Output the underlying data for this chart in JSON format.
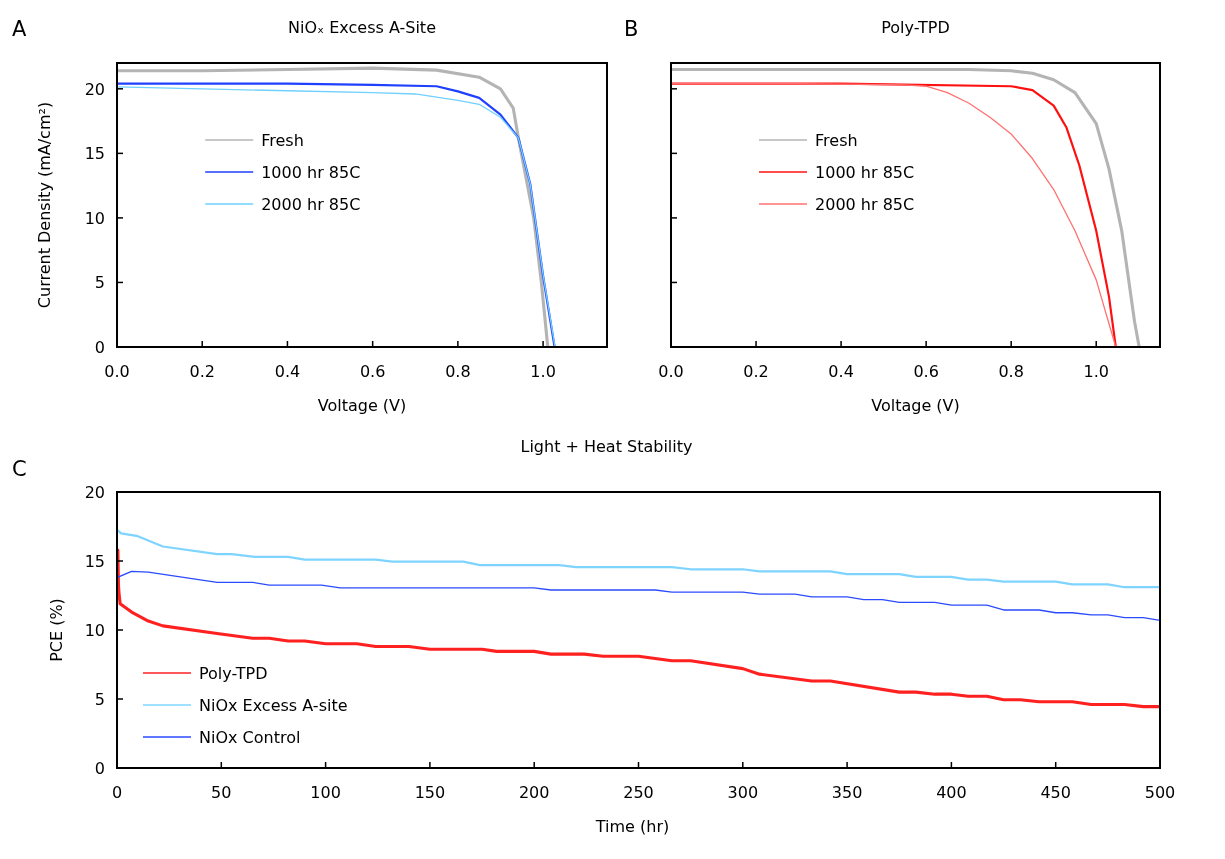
{
  "chart_data": [
    {
      "type": "line",
      "title": "NiOₓ Excess A-Site",
      "xlabel": "Voltage (V)",
      "ylabel": "Current Density (mA/cm²)",
      "annotations": [
        "A"
      ],
      "xlim": [
        0,
        1.15
      ],
      "ylim": [
        0,
        22
      ],
      "xticks": [
        {
          "value": 0,
          "label": "0.0"
        },
        {
          "value": 0.2,
          "label": "0.2"
        },
        {
          "value": 0.4,
          "label": "0.4"
        },
        {
          "value": 0.6,
          "label": "0.6"
        },
        {
          "value": 0.8,
          "label": "0.8"
        },
        {
          "value": 1,
          "label": "1.0"
        }
      ],
      "yticks": [
        0,
        5,
        10,
        15,
        20
      ],
      "legend": "center",
      "grid": false,
      "line_style": "solid",
      "marker": "none",
      "series": [
        {
          "name": "Fresh",
          "color": "#b4b4b4",
          "x": [
            0,
            0.2,
            0.4,
            0.6,
            0.75,
            0.85,
            0.9,
            0.93,
            0.942,
            0.978,
            0.996,
            1.011
          ],
          "values": [
            21.4,
            21.4,
            21.5,
            21.6,
            21.45,
            20.9,
            20,
            18.5,
            16.2,
            10,
            5,
            0
          ]
        },
        {
          "name": "1000 hr 85C",
          "color": "#2040ff",
          "x": [
            0,
            0.2,
            0.4,
            0.6,
            0.75,
            0.8,
            0.85,
            0.9,
            0.942,
            0.97,
            1,
            1.027
          ],
          "values": [
            20.4,
            20.4,
            20.4,
            20.3,
            20.2,
            19.8,
            19.3,
            18,
            16.2,
            12.6,
            5.5,
            0
          ]
        },
        {
          "name": "2000 hr 85C",
          "color": "#70d0ff",
          "x": [
            0,
            0.2,
            0.4,
            0.6,
            0.7,
            0.8,
            0.85,
            0.9,
            0.942,
            0.97,
            1,
            1.028
          ],
          "values": [
            20.15,
            20,
            19.85,
            19.7,
            19.6,
            19.1,
            18.8,
            17.8,
            16.2,
            12.6,
            5.6,
            0
          ]
        }
      ]
    },
    {
      "type": "line",
      "title": "Poly-TPD",
      "xlabel": "Voltage (V)",
      "annotations": [
        "B"
      ],
      "xlim": [
        0,
        1.15
      ],
      "ylim": [
        0,
        22
      ],
      "xticks": [
        {
          "value": 0,
          "label": "0.0"
        },
        {
          "value": 0.2,
          "label": "0.2"
        },
        {
          "value": 0.4,
          "label": "0.4"
        },
        {
          "value": 0.6,
          "label": "0.6"
        },
        {
          "value": 0.8,
          "label": "0.8"
        },
        {
          "value": 1,
          "label": "1.0"
        }
      ],
      "yticks": [
        0,
        5,
        10,
        15,
        20
      ],
      "tick_labels": "x",
      "legend": "center",
      "grid": false,
      "line_style": "solid",
      "marker": "none",
      "series": [
        {
          "name": "Fresh",
          "color": "#b4b4b4",
          "x": [
            0,
            0.4,
            0.7,
            0.8,
            0.85,
            0.9,
            0.95,
            1,
            1.03,
            1.06,
            1.09,
            1.101
          ],
          "values": [
            21.5,
            21.5,
            21.5,
            21.4,
            21.2,
            20.7,
            19.7,
            17.3,
            13.8,
            9,
            2,
            0
          ]
        },
        {
          "name": "1000 hr 85C",
          "color": "#ff1010",
          "x": [
            0,
            0.4,
            0.8,
            0.85,
            0.9,
            0.93,
            0.96,
            1,
            1.03,
            1.046
          ],
          "values": [
            20.4,
            20.4,
            20.2,
            19.9,
            18.7,
            17,
            14.1,
            9,
            3.9,
            0
          ]
        },
        {
          "name": "2000 hr 85C",
          "color": "#ff7070",
          "x": [
            0,
            0.3,
            0.55,
            0.6,
            0.65,
            0.7,
            0.75,
            0.8,
            0.85,
            0.9,
            0.95,
            1,
            1.046
          ],
          "values": [
            20.4,
            20.4,
            20.3,
            20.2,
            19.7,
            18.9,
            17.8,
            16.5,
            14.6,
            12.2,
            9,
            5.2,
            0
          ]
        }
      ]
    },
    {
      "type": "line",
      "title": "Light + Heat Stability",
      "xlabel": "Time (hr)",
      "ylabel": "PCE (%)",
      "annotations": [
        "C"
      ],
      "xlim": [
        0,
        500
      ],
      "ylim": [
        0,
        20
      ],
      "xticks": [
        0,
        50,
        100,
        150,
        200,
        250,
        300,
        350,
        400,
        450,
        500
      ],
      "yticks": [
        0,
        5,
        10,
        15,
        20
      ],
      "legend": "bottom left",
      "grid": false,
      "line_style": "solid",
      "marker": "none",
      "series": [
        {
          "name": "Poly-TPD",
          "color": "#ff2020",
          "x": [
            0.4,
            0.7,
            1,
            1.5,
            7,
            15,
            22,
            48,
            65,
            73,
            82,
            90,
            100,
            115,
            124,
            140,
            150,
            175,
            182,
            200,
            208,
            224,
            233,
            250,
            266,
            275,
            300,
            308,
            333,
            342,
            375,
            383,
            392,
            400,
            408,
            417,
            425,
            433,
            442,
            458,
            467,
            483,
            492,
            500
          ],
          "values": [
            15.8,
            13.2,
            12.6,
            11.9,
            11.3,
            10.65,
            10.3,
            9.75,
            9.4,
            9.4,
            9.2,
            9.2,
            9,
            9,
            8.8,
            8.8,
            8.6,
            8.6,
            8.45,
            8.45,
            8.25,
            8.25,
            8.1,
            8.1,
            7.77,
            7.77,
            7.2,
            6.8,
            6.3,
            6.3,
            5.5,
            5.5,
            5.35,
            5.35,
            5.2,
            5.2,
            4.95,
            4.95,
            4.8,
            4.8,
            4.6,
            4.6,
            4.45,
            4.45
          ]
        },
        {
          "name": "NiOx Excess A-site",
          "color": "#7fd4ff",
          "x": [
            0.5,
            2,
            10,
            22,
            48,
            55,
            66,
            82,
            90,
            124,
            132,
            166,
            174,
            212,
            220,
            266,
            275,
            300,
            308,
            342,
            350,
            375,
            383,
            400,
            408,
            417,
            425,
            450,
            458,
            475,
            483,
            500
          ],
          "values": [
            17.2,
            17,
            16.8,
            16.05,
            15.5,
            15.5,
            15.3,
            15.3,
            15.1,
            15.1,
            14.95,
            14.95,
            14.7,
            14.7,
            14.55,
            14.55,
            14.4,
            14.4,
            14.25,
            14.25,
            14.05,
            14.05,
            13.85,
            13.85,
            13.65,
            13.65,
            13.5,
            13.5,
            13.3,
            13.3,
            13.1,
            13.1
          ]
        },
        {
          "name": "NiOx Control",
          "color": "#2b4bff",
          "x": [
            0,
            7,
            15,
            48,
            65,
            73,
            98,
            107,
            200,
            208,
            258,
            266,
            300,
            308,
            325,
            333,
            350,
            358,
            367,
            375,
            392,
            400,
            417,
            425,
            442,
            450,
            458,
            467,
            475,
            483,
            492,
            500
          ],
          "values": [
            13.8,
            14.25,
            14.2,
            13.45,
            13.45,
            13.25,
            13.25,
            13.05,
            13.05,
            12.9,
            12.9,
            12.75,
            12.75,
            12.6,
            12.6,
            12.4,
            12.4,
            12.2,
            12.2,
            12,
            12,
            11.8,
            11.8,
            11.45,
            11.45,
            11.25,
            11.25,
            11.1,
            11.1,
            10.9,
            10.9,
            10.7
          ]
        }
      ]
    }
  ]
}
